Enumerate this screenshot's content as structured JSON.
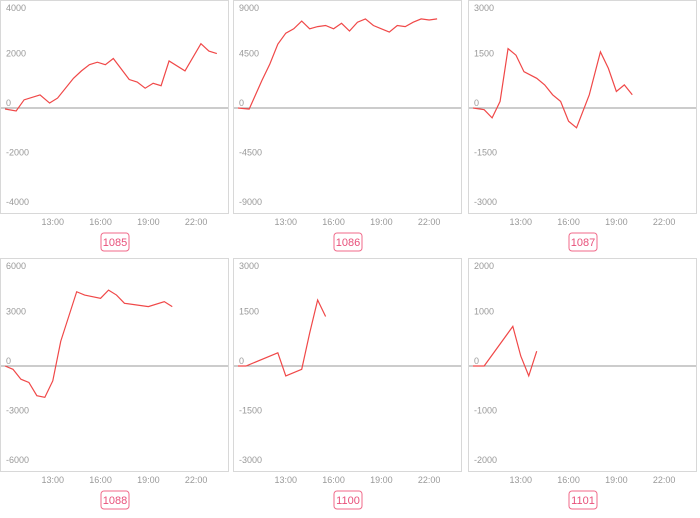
{
  "chart_data": [
    {
      "type": "line",
      "title": "1085",
      "color": "#f04848",
      "x": [
        10,
        10.7,
        11.2,
        12.2,
        12.8,
        13.3,
        14.3,
        14.8,
        15.3,
        15.8,
        16.3,
        16.8,
        17.8,
        18.3,
        18.8,
        19.3,
        19.8,
        20.3,
        21.3,
        22.3,
        22.8,
        23.3
      ],
      "values": [
        -40,
        -120,
        330,
        530,
        200,
        400,
        1200,
        1500,
        1750,
        1850,
        1750,
        2000,
        1150,
        1050,
        800,
        1000,
        900,
        1900,
        1500,
        2600,
        2300,
        2200
      ],
      "xlim": [
        10,
        24
      ],
      "xticks": [
        {
          "value": 13,
          "label": "13:00"
        },
        {
          "value": 16,
          "label": "16:00"
        },
        {
          "value": 19,
          "label": "19:00"
        },
        {
          "value": 22,
          "label": "22:00"
        }
      ],
      "ylim": [
        -4000,
        4000
      ],
      "yticks": [
        -4000,
        -2000,
        0,
        2000,
        4000
      ]
    },
    {
      "type": "line",
      "title": "1086",
      "color": "#f04848",
      "x": [
        10,
        10.7,
        11.5,
        12,
        12.5,
        13,
        13.5,
        14,
        14.5,
        15,
        15.5,
        16,
        16.5,
        17,
        17.5,
        18,
        18.5,
        19,
        19.5,
        20,
        20.5,
        21,
        21.5,
        22,
        22.5
      ],
      "values": [
        0,
        -100,
        2500,
        4000,
        5800,
        6800,
        7200,
        7900,
        7200,
        7400,
        7500,
        7200,
        7700,
        7000,
        7800,
        8100,
        7500,
        7200,
        6900,
        7500,
        7400,
        7800,
        8100,
        8000,
        8100
      ],
      "xlim": [
        10,
        24
      ],
      "xticks": [
        {
          "value": 13,
          "label": "13:00"
        },
        {
          "value": 16,
          "label": "16:00"
        },
        {
          "value": 19,
          "label": "19:00"
        },
        {
          "value": 22,
          "label": "22:00"
        }
      ],
      "ylim": [
        -9000,
        9000
      ],
      "yticks": [
        -9000,
        -4500,
        0,
        4500,
        9000
      ]
    },
    {
      "type": "line",
      "title": "1087",
      "color": "#f04848",
      "x": [
        10,
        10.7,
        11.2,
        11.7,
        12.2,
        12.7,
        13.2,
        14,
        14.5,
        15,
        15.5,
        16,
        16.5,
        17.3,
        18,
        18.5,
        19,
        19.5,
        20
      ],
      "values": [
        0,
        -50,
        -300,
        200,
        1800,
        1600,
        1100,
        900,
        700,
        400,
        200,
        -400,
        -600,
        400,
        1700,
        1200,
        500,
        700,
        400
      ],
      "xlim": [
        10,
        24
      ],
      "xticks": [
        {
          "value": 13,
          "label": "13:00"
        },
        {
          "value": 16,
          "label": "16:00"
        },
        {
          "value": 19,
          "label": "19:00"
        },
        {
          "value": 22,
          "label": "22:00"
        }
      ],
      "ylim": [
        -3000,
        3000
      ],
      "yticks": [
        -3000,
        -1500,
        0,
        1500,
        3000
      ]
    },
    {
      "type": "line",
      "title": "1088",
      "color": "#f04848",
      "x": [
        10,
        10.5,
        11,
        11.5,
        12,
        12.5,
        13,
        13.5,
        14,
        14.5,
        15,
        16,
        16.5,
        17,
        17.5,
        19,
        20,
        20.5
      ],
      "values": [
        0,
        -200,
        -800,
        -1000,
        -1800,
        -1900,
        -900,
        1500,
        3000,
        4500,
        4300,
        4100,
        4600,
        4300,
        3800,
        3600,
        3900,
        3600
      ],
      "xlim": [
        10,
        24
      ],
      "xticks": [
        {
          "value": 13,
          "label": "13:00"
        },
        {
          "value": 16,
          "label": "16:00"
        },
        {
          "value": 19,
          "label": "19:00"
        },
        {
          "value": 22,
          "label": "22:00"
        }
      ],
      "ylim": [
        -6000,
        6000
      ],
      "yticks": [
        -6000,
        -3000,
        0,
        3000,
        6000
      ]
    },
    {
      "type": "line",
      "title": "1100",
      "color": "#f04848",
      "x": [
        10,
        10.5,
        12.5,
        13,
        14,
        14.5,
        15,
        15.5
      ],
      "values": [
        0,
        0,
        400,
        -300,
        -100,
        1000,
        2000,
        1500
      ],
      "xlim": [
        10,
        24
      ],
      "xticks": [
        {
          "value": 13,
          "label": "13:00"
        },
        {
          "value": 16,
          "label": "16:00"
        },
        {
          "value": 19,
          "label": "19:00"
        },
        {
          "value": 22,
          "label": "22:00"
        }
      ],
      "ylim": [
        -3000,
        3000
      ],
      "yticks": [
        -3000,
        -1500,
        0,
        1500,
        3000
      ]
    },
    {
      "type": "line",
      "title": "1101",
      "color": "#f04848",
      "x": [
        10,
        10.7,
        12.5,
        13,
        13.5,
        14
      ],
      "values": [
        0,
        0,
        800,
        200,
        -200,
        300
      ],
      "xlim": [
        10,
        24
      ],
      "xticks": [
        {
          "value": 13,
          "label": "13:00"
        },
        {
          "value": 16,
          "label": "16:00"
        },
        {
          "value": 19,
          "label": "19:00"
        },
        {
          "value": 22,
          "label": "22:00"
        }
      ],
      "ylim": [
        -2000,
        2000
      ],
      "yticks": [
        -2000,
        -1000,
        0,
        1000,
        2000
      ]
    }
  ]
}
